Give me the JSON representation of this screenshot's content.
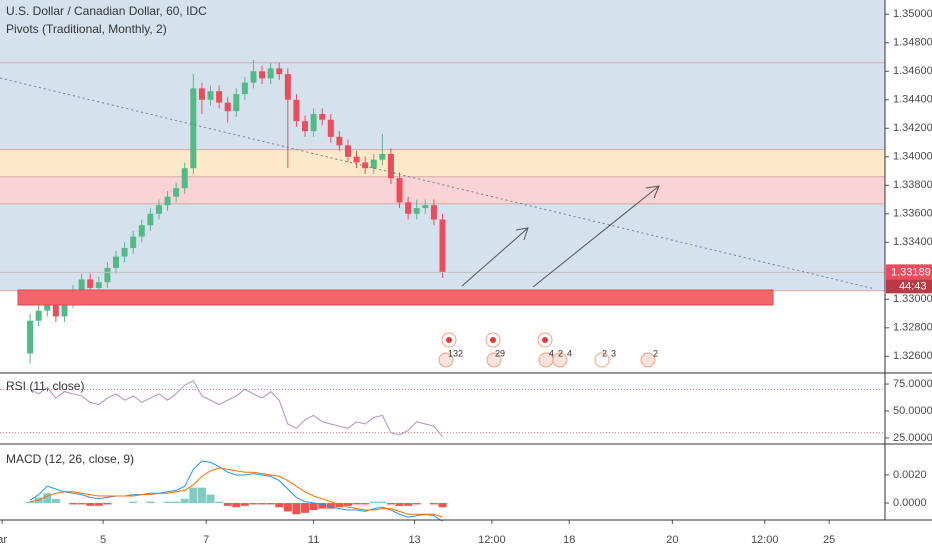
{
  "chart_data": [
    {
      "type": "candlestick",
      "title": "U.S. Dollar / Canadian Dollar, 60, IDC",
      "subtitle": "Pivots (Traditional, Monthly, 2)",
      "x": [
        14,
        18,
        22,
        26,
        30,
        34,
        38,
        42,
        46,
        50,
        54,
        58,
        62,
        66,
        70,
        74,
        78,
        82,
        86,
        90,
        94,
        98,
        102,
        106,
        110,
        114,
        118,
        122,
        126,
        130,
        134,
        138,
        142,
        146,
        150,
        154,
        158,
        162,
        166,
        170,
        174,
        178,
        182,
        186,
        190,
        194,
        198,
        202,
        206
      ],
      "open": [
        1.3262,
        1.3285,
        1.3292,
        1.33,
        1.3288,
        1.3298,
        1.3306,
        1.3314,
        1.3308,
        1.3312,
        1.3322,
        1.333,
        1.3336,
        1.3344,
        1.3352,
        1.336,
        1.3366,
        1.3372,
        1.3378,
        1.3392,
        1.3448,
        1.344,
        1.3446,
        1.3438,
        1.3432,
        1.3444,
        1.3452,
        1.346,
        1.3455,
        1.3462,
        1.3458,
        1.344,
        1.3425,
        1.3418,
        1.343,
        1.3426,
        1.3414,
        1.3408,
        1.34,
        1.3396,
        1.3392,
        1.3398,
        1.3402,
        1.3385,
        1.3368,
        1.336,
        1.3364,
        1.3366,
        1.3356
      ],
      "high": [
        1.329,
        1.3296,
        1.3304,
        1.3304,
        1.3302,
        1.331,
        1.3318,
        1.3318,
        1.3316,
        1.3326,
        1.3334,
        1.334,
        1.3348,
        1.3356,
        1.3364,
        1.337,
        1.3376,
        1.3382,
        1.3396,
        1.3458,
        1.3452,
        1.345,
        1.345,
        1.3442,
        1.3448,
        1.3456,
        1.3468,
        1.3464,
        1.3466,
        1.3466,
        1.3462,
        1.3444,
        1.3429,
        1.3434,
        1.3434,
        1.343,
        1.3418,
        1.3412,
        1.3404,
        1.34,
        1.3402,
        1.3416,
        1.3406,
        1.3389,
        1.3372,
        1.337,
        1.337,
        1.337,
        1.336
      ],
      "low": [
        1.3255,
        1.3281,
        1.3288,
        1.3284,
        1.3284,
        1.3294,
        1.3302,
        1.3304,
        1.33,
        1.3308,
        1.3318,
        1.3326,
        1.3332,
        1.334,
        1.3348,
        1.3356,
        1.3362,
        1.3368,
        1.3374,
        1.3388,
        1.343,
        1.3436,
        1.3434,
        1.3424,
        1.3428,
        1.344,
        1.3448,
        1.3451,
        1.3451,
        1.3454,
        1.3392,
        1.3421,
        1.3414,
        1.3414,
        1.3422,
        1.341,
        1.3404,
        1.3396,
        1.3392,
        1.3388,
        1.3388,
        1.3394,
        1.3381,
        1.3364,
        1.3356,
        1.3356,
        1.336,
        1.3352,
        1.3315
      ],
      "close": [
        1.3285,
        1.3292,
        1.33,
        1.3288,
        1.3298,
        1.3306,
        1.3314,
        1.3308,
        1.3312,
        1.3322,
        1.333,
        1.3336,
        1.3344,
        1.3352,
        1.336,
        1.3366,
        1.3372,
        1.3378,
        1.3392,
        1.3448,
        1.344,
        1.3446,
        1.3438,
        1.3432,
        1.3444,
        1.3452,
        1.346,
        1.3455,
        1.3462,
        1.3458,
        1.344,
        1.3425,
        1.3418,
        1.343,
        1.3426,
        1.3414,
        1.3408,
        1.34,
        1.3396,
        1.3392,
        1.3398,
        1.3402,
        1.3385,
        1.3368,
        1.336,
        1.3364,
        1.3366,
        1.3356,
        1.3319
      ],
      "up_color": "#53b987",
      "down_color": "#eb4d5c",
      "xlim": [
        0,
        412
      ],
      "xticks": [
        {
          "value": 1,
          "label": "ar"
        },
        {
          "value": 48,
          "label": "5"
        },
        {
          "value": 96,
          "label": "7"
        },
        {
          "value": 146,
          "label": "11"
        },
        {
          "value": 193,
          "label": "13"
        },
        {
          "value": 229,
          "label": "12:00"
        },
        {
          "value": 265,
          "label": "18"
        },
        {
          "value": 313,
          "label": "20"
        },
        {
          "value": 356,
          "label": "12:00"
        },
        {
          "value": 386,
          "label": "25"
        }
      ],
      "ylim": [
        1.3249,
        1.351
      ],
      "yticks": [
        {
          "value": 1.35,
          "label": "1.35000"
        },
        {
          "value": 1.348,
          "label": "1.34800"
        },
        {
          "value": 1.346,
          "label": "1.34600"
        },
        {
          "value": 1.344,
          "label": "1.34400"
        },
        {
          "value": 1.342,
          "label": "1.34200"
        },
        {
          "value": 1.34,
          "label": "1.34000"
        },
        {
          "value": 1.338,
          "label": "1.33800"
        },
        {
          "value": 1.336,
          "label": "1.33600"
        },
        {
          "value": 1.334,
          "label": "1.33400"
        },
        {
          "value": 1.33,
          "label": "1.33000"
        },
        {
          "value": 1.328,
          "label": "1.32800"
        },
        {
          "value": 1.326,
          "label": "1.32600"
        }
      ],
      "pivot_levels": [
        1.3466,
        1.3405,
        1.3386,
        1.3367,
        1.3306
      ],
      "pivot_colors": [
        "#d6e1ee",
        "#d6e1ee",
        "#fde9c9",
        "#f9d3d5",
        "#d6e1ee"
      ],
      "last_price": 1.33189,
      "last_price_color": "#eb4d5c",
      "countdown": "44:43",
      "events": [
        "132",
        "29",
        "4",
        "2",
        "4",
        "2",
        "3",
        "2"
      ]
    },
    {
      "type": "line",
      "title": "RSI (11, close)",
      "color": "#b38cc4",
      "values": [
        70,
        66,
        72,
        62,
        68,
        66,
        64,
        58,
        56,
        62,
        66,
        60,
        64,
        58,
        62,
        66,
        60,
        66,
        74,
        78,
        64,
        60,
        56,
        60,
        64,
        70,
        66,
        62,
        68,
        60,
        38,
        34,
        42,
        46,
        40,
        38,
        36,
        34,
        40,
        38,
        44,
        46,
        30,
        28,
        32,
        40,
        38,
        36,
        26
      ],
      "bands": [
        70,
        30
      ],
      "ylim": [
        20.4,
        84.3
      ],
      "yticks": [
        {
          "value": 75,
          "label": "75.0000"
        },
        {
          "value": 50,
          "label": "50.0000"
        },
        {
          "value": 25,
          "label": "25.0000"
        }
      ]
    },
    {
      "type": "line",
      "title": "MACD (12, 26, close, 9)",
      "series": [
        {
          "color": "#2196f3",
          "values": [
            0.0002,
            0.0006,
            0.0012,
            0.001,
            0.0008,
            0.0007,
            0.0006,
            0.0004,
            0.0003,
            0.0004,
            0.0005,
            0.0005,
            0.0006,
            0.0006,
            0.0007,
            0.0007,
            0.0008,
            0.0009,
            0.0012,
            0.0024,
            0.003,
            0.0029,
            0.0026,
            0.0022,
            0.002,
            0.002,
            0.0021,
            0.002,
            0.0019,
            0.0016,
            0.001,
            0.0004,
            0.0001,
            0,
            -0.0001,
            -0.0003,
            -0.0004,
            -0.0005,
            -0.0005,
            -0.0006,
            -0.0004,
            -0.0003,
            -0.0005,
            -0.0008,
            -0.001,
            -0.0009,
            -0.0008,
            -0.0009,
            -0.0013
          ]
        },
        {
          "color": "#ff6d00",
          "values": [
            0.0001,
            0.0002,
            0.0005,
            0.0007,
            0.0008,
            0.0008,
            0.0007,
            0.0006,
            0.0005,
            0.0005,
            0.0005,
            0.0005,
            0.0005,
            0.0006,
            0.0006,
            0.0007,
            0.0007,
            0.0008,
            0.0009,
            0.0013,
            0.0019,
            0.0023,
            0.0025,
            0.0024,
            0.0023,
            0.0022,
            0.0022,
            0.0021,
            0.002,
            0.0019,
            0.0016,
            0.0012,
            0.0008,
            0.0005,
            0.0003,
            0.0001,
            -0.0001,
            -0.0003,
            -0.0004,
            -0.0005,
            -0.0005,
            -0.0004,
            -0.0004,
            -0.0006,
            -0.0008,
            -0.0008,
            -0.0008,
            -0.0008,
            -0.001
          ]
        }
      ],
      "histogram": {
        "pos_color": "#80cbc4",
        "neg_color": "#ef5350",
        "values": [
          0.0001,
          0.0004,
          0.0007,
          0.0003,
          0,
          -0.0001,
          -0.0001,
          -0.0002,
          -0.0002,
          -0.0001,
          0,
          0,
          0.0001,
          0,
          0.0001,
          0,
          0.0001,
          0.0001,
          0.0003,
          0.0011,
          0.0011,
          0.0006,
          0.0001,
          -0.0002,
          -0.0003,
          -0.0002,
          -0.0001,
          -0.0001,
          -0.0001,
          -0.0003,
          -0.0006,
          -0.0008,
          -0.0007,
          -0.0005,
          -0.0004,
          -0.0004,
          -0.0003,
          -0.0002,
          -0.0001,
          -0.0001,
          0.0001,
          0.0001,
          -0.0001,
          -0.0002,
          -0.0002,
          -0.0001,
          0,
          -0.0001,
          -0.0003
        ]
      },
      "ylim": [
        -0.00121,
        0.00414
      ],
      "yticks": [
        {
          "value": 0.002,
          "label": "0.0020"
        },
        {
          "value": 0,
          "label": "0.0000"
        }
      ]
    }
  ]
}
